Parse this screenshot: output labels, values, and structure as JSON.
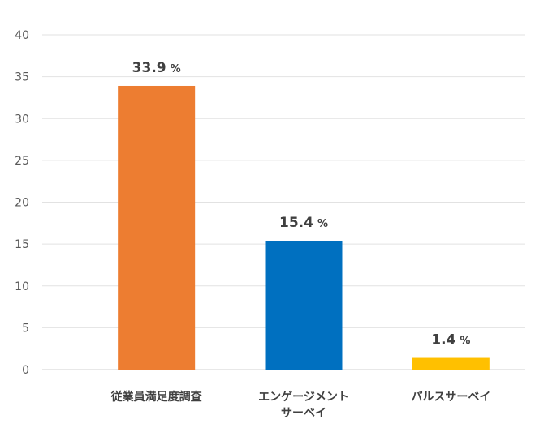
{
  "chart_data": {
    "type": "bar",
    "categories": [
      [
        "従業員満足度調査"
      ],
      [
        "エンゲージメント",
        "サーベイ"
      ],
      [
        "パルスサーベイ"
      ]
    ],
    "values": [
      33.9,
      15.4,
      1.4
    ],
    "value_labels": [
      "33.9",
      "15.4",
      "1.4"
    ],
    "value_unit": "%",
    "bar_colors": [
      "#ED7D31",
      "#0070C0",
      "#FFC000"
    ],
    "ylim": [
      0,
      40
    ],
    "yticks": [
      "0",
      "5",
      "10",
      "15",
      "20",
      "25",
      "30",
      "35",
      "40"
    ],
    "grid": true,
    "legend": "none"
  }
}
